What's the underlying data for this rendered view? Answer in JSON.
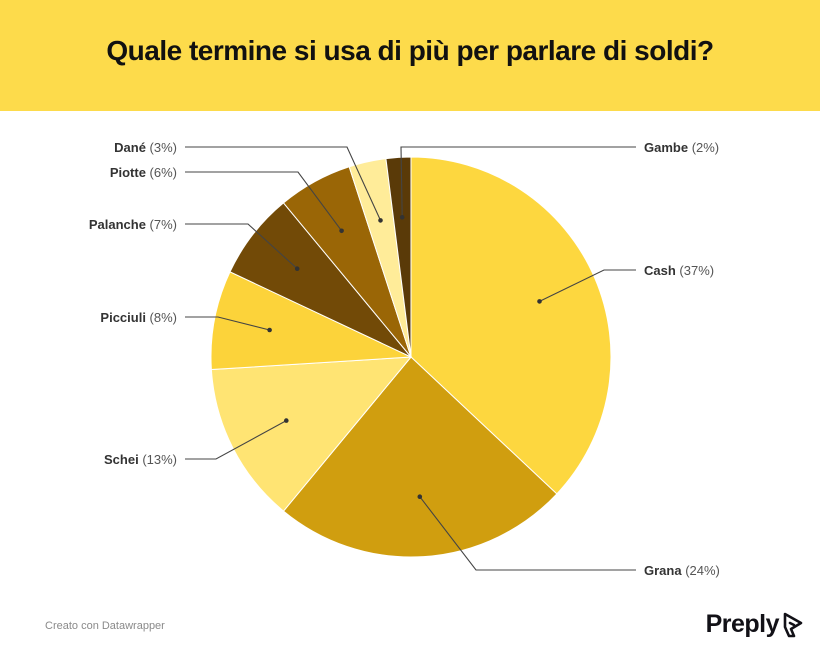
{
  "title": "Quale termine si usa di più per parlare di soldi?",
  "credit": "Creato con Datawrapper",
  "logo": "Preply",
  "chart_data": {
    "type": "pie",
    "title": "Quale termine si usa di più per parlare di soldi?",
    "slices": [
      {
        "label": "Cash",
        "value": 37,
        "display": "(37%)",
        "color": "#fdd73f"
      },
      {
        "label": "Grana",
        "value": 24,
        "display": "(24%)",
        "color": "#d09e0f"
      },
      {
        "label": "Schei",
        "value": 13,
        "display": "(13%)",
        "color": "#ffe473"
      },
      {
        "label": "Picciuli",
        "value": 8,
        "display": "(8%)",
        "color": "#fcd33a"
      },
      {
        "label": "Palanche",
        "value": 7,
        "display": "(7%)",
        "color": "#724a07"
      },
      {
        "label": "Piotte",
        "value": 6,
        "display": "(6%)",
        "color": "#9a6606"
      },
      {
        "label": "Dané",
        "value": 3,
        "display": "(3%)",
        "color": "#ffec99"
      },
      {
        "label": "Gambe",
        "value": 2,
        "display": "(2%)",
        "color": "#5a3a08"
      }
    ]
  }
}
